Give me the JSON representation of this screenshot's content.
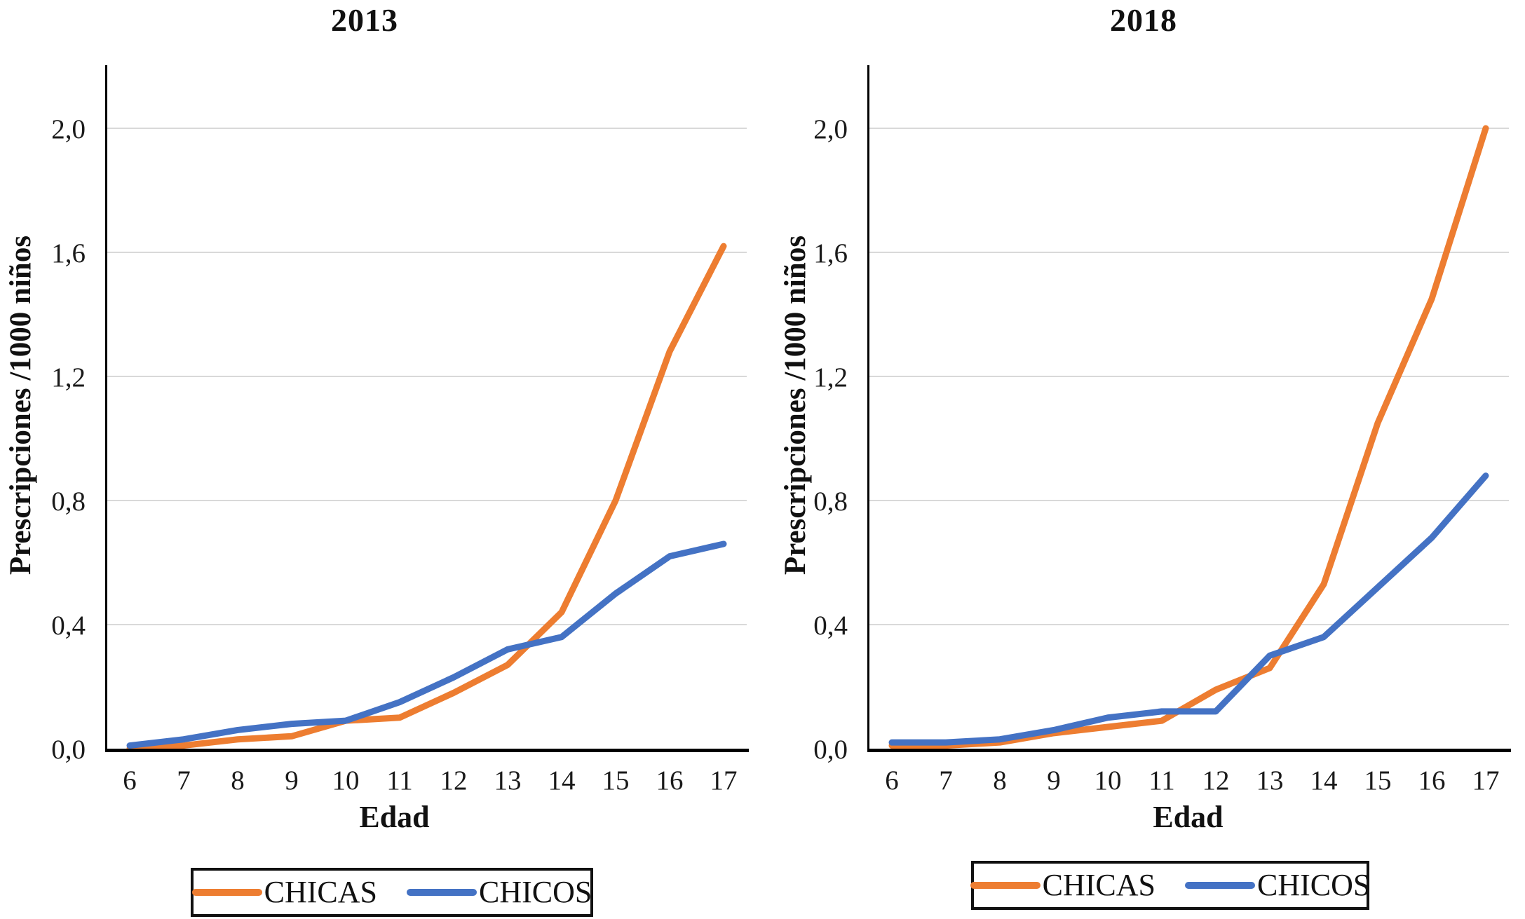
{
  "colors": {
    "chicas": "#ED7D31",
    "chicos": "#4472C4",
    "grid": "#D9D9D9",
    "axis": "#000000",
    "text": "#1A1A1A"
  },
  "chart_data": [
    {
      "type": "line",
      "title": "2013",
      "xlabel": "Edad",
      "ylabel": "Prescripciones /1000 niños",
      "x": [
        6,
        7,
        8,
        9,
        10,
        11,
        12,
        13,
        14,
        15,
        16,
        17
      ],
      "xtick_labels": [
        "6",
        "7",
        "8",
        "9",
        "10",
        "11",
        "12",
        "13",
        "14",
        "15",
        "16",
        "17"
      ],
      "ylim": [
        0,
        2.2
      ],
      "yticks": [
        0,
        0.4,
        0.8,
        1.2,
        1.6,
        2.0
      ],
      "ytick_labels": [
        "0,0",
        "0,4",
        "0,8",
        "1,2",
        "1,6",
        "2,0"
      ],
      "grid": true,
      "legend_position": "bottom",
      "series": [
        {
          "name": "CHICAS",
          "color": "#ED7D31",
          "values": [
            0.0,
            0.01,
            0.03,
            0.04,
            0.09,
            0.1,
            0.18,
            0.27,
            0.44,
            0.8,
            1.28,
            1.62
          ]
        },
        {
          "name": "CHICOS",
          "color": "#4472C4",
          "values": [
            0.01,
            0.03,
            0.06,
            0.08,
            0.09,
            0.15,
            0.23,
            0.32,
            0.36,
            0.5,
            0.62,
            0.66
          ]
        }
      ]
    },
    {
      "type": "line",
      "title": "2018",
      "xlabel": "Edad",
      "ylabel": "Prescripciones /1000 niños",
      "x": [
        6,
        7,
        8,
        9,
        10,
        11,
        12,
        13,
        14,
        15,
        16,
        17
      ],
      "xtick_labels": [
        "6",
        "7",
        "8",
        "9",
        "10",
        "11",
        "12",
        "13",
        "14",
        "15",
        "16",
        "17"
      ],
      "ylim": [
        0,
        2.2
      ],
      "yticks": [
        0,
        0.4,
        0.8,
        1.2,
        1.6,
        2.0
      ],
      "ytick_labels": [
        "0,0",
        "0,4",
        "0,8",
        "1,2",
        "1,6",
        "2,0"
      ],
      "grid": true,
      "legend_position": "bottom",
      "series": [
        {
          "name": "CHICAS",
          "color": "#ED7D31",
          "values": [
            0.01,
            0.01,
            0.02,
            0.05,
            0.07,
            0.09,
            0.19,
            0.26,
            0.53,
            1.05,
            1.45,
            2.0
          ]
        },
        {
          "name": "CHICOS",
          "color": "#4472C4",
          "values": [
            0.02,
            0.02,
            0.03,
            0.06,
            0.1,
            0.12,
            0.12,
            0.3,
            0.36,
            0.52,
            0.68,
            0.88
          ]
        }
      ]
    }
  ]
}
